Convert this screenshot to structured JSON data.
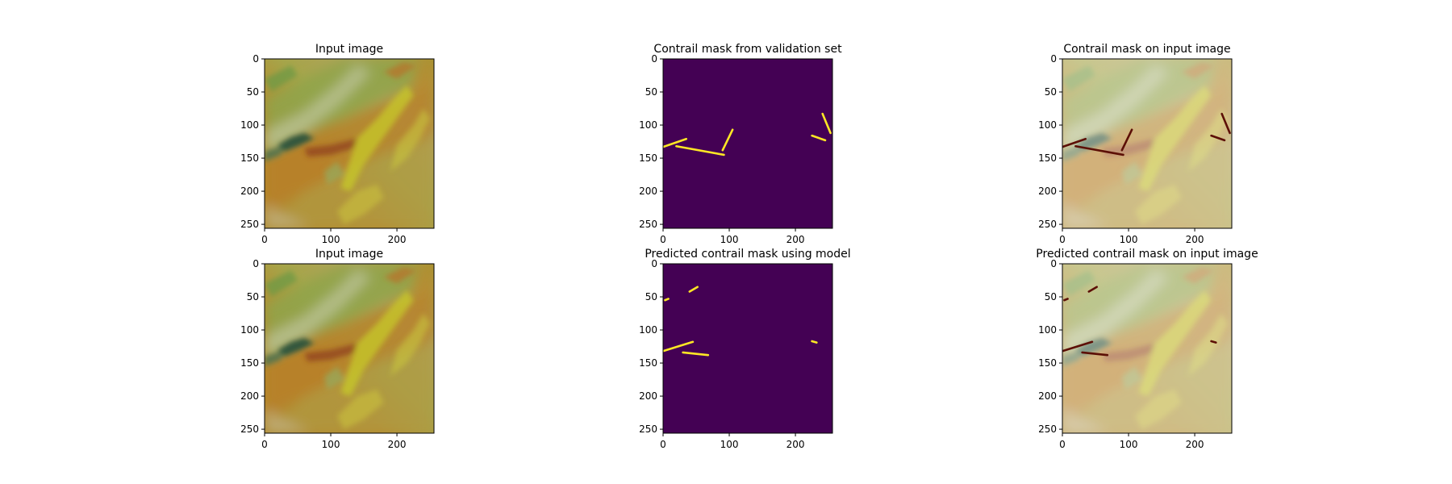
{
  "figure": {
    "background": "#ffffff"
  },
  "chart_data": [
    {
      "type": "image",
      "title": "Input image",
      "content": "rgb",
      "xticks": [
        0,
        100,
        200
      ],
      "yticks": [
        0,
        50,
        100,
        150,
        200,
        250
      ],
      "xlim": [
        0,
        256
      ],
      "ylim": [
        256,
        0
      ]
    },
    {
      "type": "heatmap",
      "title": "Contrail mask from validation set",
      "content": "mask",
      "colormap": "viridis",
      "mask_colors": {
        "background": "#440154",
        "contrail": "#fde725"
      },
      "xticks": [
        0,
        100,
        200
      ],
      "yticks": [
        0,
        50,
        100,
        150,
        200,
        250
      ],
      "xlim": [
        0,
        256
      ],
      "ylim": [
        256,
        0
      ],
      "contrails": [
        {
          "x": [
            0,
            35
          ],
          "y": [
            133,
            121
          ]
        },
        {
          "x": [
            20,
            92
          ],
          "y": [
            132,
            145
          ]
        },
        {
          "x": [
            90,
            105
          ],
          "y": [
            138,
            107
          ]
        },
        {
          "x": [
            225,
            245
          ],
          "y": [
            116,
            123
          ]
        },
        {
          "x": [
            241,
            253
          ],
          "y": [
            83,
            112
          ]
        }
      ]
    },
    {
      "type": "image",
      "title": "Contrail mask on input image",
      "content": "rgb_overlay",
      "overlay_color": "#5c0f06",
      "xticks": [
        0,
        100,
        200
      ],
      "yticks": [
        0,
        50,
        100,
        150,
        200,
        250
      ],
      "xlim": [
        0,
        256
      ],
      "ylim": [
        256,
        0
      ],
      "contrails": [
        {
          "x": [
            0,
            35
          ],
          "y": [
            133,
            121
          ]
        },
        {
          "x": [
            20,
            92
          ],
          "y": [
            132,
            145
          ]
        },
        {
          "x": [
            90,
            105
          ],
          "y": [
            138,
            107
          ]
        },
        {
          "x": [
            225,
            245
          ],
          "y": [
            116,
            123
          ]
        },
        {
          "x": [
            241,
            253
          ],
          "y": [
            83,
            112
          ]
        }
      ]
    },
    {
      "type": "image",
      "title": "Input image",
      "content": "rgb",
      "xticks": [
        0,
        100,
        200
      ],
      "yticks": [
        0,
        50,
        100,
        150,
        200,
        250
      ],
      "xlim": [
        0,
        256
      ],
      "ylim": [
        256,
        0
      ]
    },
    {
      "type": "heatmap",
      "title": "Predicted contrail mask using model",
      "content": "mask",
      "colormap": "viridis",
      "mask_colors": {
        "background": "#440154",
        "contrail": "#fde725"
      },
      "xticks": [
        0,
        100,
        200
      ],
      "yticks": [
        0,
        50,
        100,
        150,
        200,
        250
      ],
      "xlim": [
        0,
        256
      ],
      "ylim": [
        256,
        0
      ],
      "contrails": [
        {
          "x": [
            0,
            45
          ],
          "y": [
            132,
            118
          ]
        },
        {
          "x": [
            30,
            68
          ],
          "y": [
            134,
            138
          ]
        },
        {
          "x": [
            40,
            52
          ],
          "y": [
            42,
            35
          ]
        },
        {
          "x": [
            3,
            8
          ],
          "y": [
            55,
            53
          ]
        },
        {
          "x": [
            225,
            232
          ],
          "y": [
            117,
            119
          ]
        }
      ]
    },
    {
      "type": "image",
      "title": "Predicted contrail mask on input image",
      "content": "rgb_overlay",
      "overlay_color": "#5c0f06",
      "xticks": [
        0,
        100,
        200
      ],
      "yticks": [
        0,
        50,
        100,
        150,
        200,
        250
      ],
      "xlim": [
        0,
        256
      ],
      "ylim": [
        256,
        0
      ],
      "contrails": [
        {
          "x": [
            0,
            45
          ],
          "y": [
            132,
            118
          ]
        },
        {
          "x": [
            30,
            68
          ],
          "y": [
            134,
            138
          ]
        },
        {
          "x": [
            40,
            52
          ],
          "y": [
            42,
            35
          ]
        },
        {
          "x": [
            3,
            8
          ],
          "y": [
            55,
            53
          ]
        },
        {
          "x": [
            225,
            232
          ],
          "y": [
            117,
            119
          ]
        }
      ]
    }
  ]
}
